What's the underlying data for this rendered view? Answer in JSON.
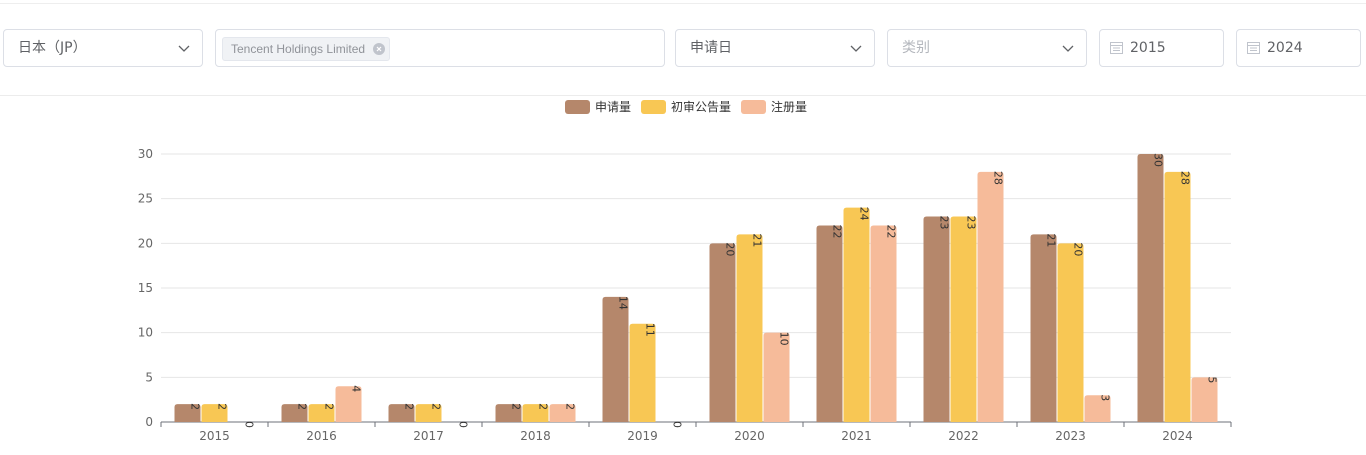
{
  "filters": {
    "country": "日本（JP）",
    "applicant_tag": "Tencent Holdings Limited",
    "date_type": "申请日",
    "category_placeholder": "类别",
    "start_year": "2015",
    "end_year": "2024"
  },
  "icons": {
    "dropdown": "chevron-down-icon",
    "tag_close": "close-circle-icon",
    "date": "calendar-icon"
  },
  "chart_data": {
    "type": "bar",
    "categories": [
      "2015",
      "2016",
      "2017",
      "2018",
      "2019",
      "2020",
      "2021",
      "2022",
      "2023",
      "2024"
    ],
    "series": [
      {
        "name": "申请量",
        "color": "#b5876b",
        "values": [
          2,
          2,
          2,
          2,
          14,
          20,
          22,
          23,
          21,
          30
        ]
      },
      {
        "name": "初审公告量",
        "color": "#f8c754",
        "values": [
          2,
          2,
          2,
          2,
          11,
          21,
          24,
          23,
          20,
          28
        ]
      },
      {
        "name": "注册量",
        "color": "#f6bb9a",
        "values": [
          0,
          4,
          0,
          2,
          0,
          10,
          22,
          28,
          3,
          5
        ]
      }
    ],
    "ylim": [
      0,
      30
    ],
    "yticks": [
      0,
      5,
      10,
      15,
      20,
      25,
      30
    ],
    "grid": true,
    "legend": "top-center",
    "title": "",
    "xlabel": "",
    "ylabel": ""
  }
}
